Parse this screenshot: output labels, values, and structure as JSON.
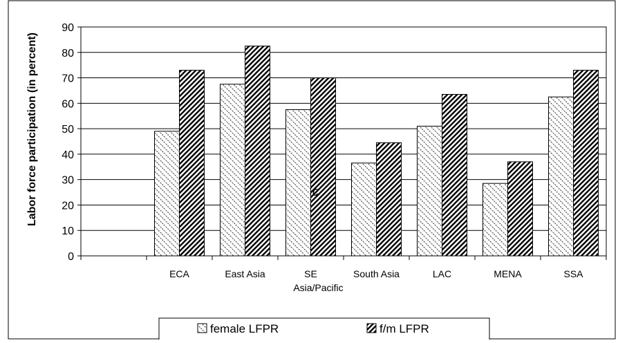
{
  "chart_data": {
    "type": "bar",
    "ylabel": "Labor force participation (in percent)",
    "xlabel": "",
    "ylim": [
      0,
      90
    ],
    "yticks": [
      0,
      10,
      20,
      30,
      40,
      50,
      60,
      70,
      80,
      90
    ],
    "categories": [
      "",
      "ECA",
      "East Asia",
      "SE Asia/Pacific",
      "South Asia",
      "LAC",
      "MENA",
      "SSA"
    ],
    "category_lines": [
      [
        ""
      ],
      [
        "ECA"
      ],
      [
        "East Asia"
      ],
      [
        "SE",
        "Asia/Pacific"
      ],
      [
        "South Asia"
      ],
      [
        "LAC"
      ],
      [
        "MENA"
      ],
      [
        "SSA"
      ]
    ],
    "series": [
      {
        "name": "female LFPR",
        "values": [
          null,
          49,
          67.5,
          57.5,
          36.5,
          51,
          28.5,
          62.5
        ]
      },
      {
        "name": "f/m LFPR",
        "values": [
          null,
          73,
          82.5,
          70,
          44.5,
          63.5,
          37,
          73
        ]
      }
    ],
    "annotations": [
      {
        "text": "c",
        "category": "SE Asia/Pacific",
        "y": 25
      }
    ],
    "grid": true,
    "legend": "bottom"
  }
}
